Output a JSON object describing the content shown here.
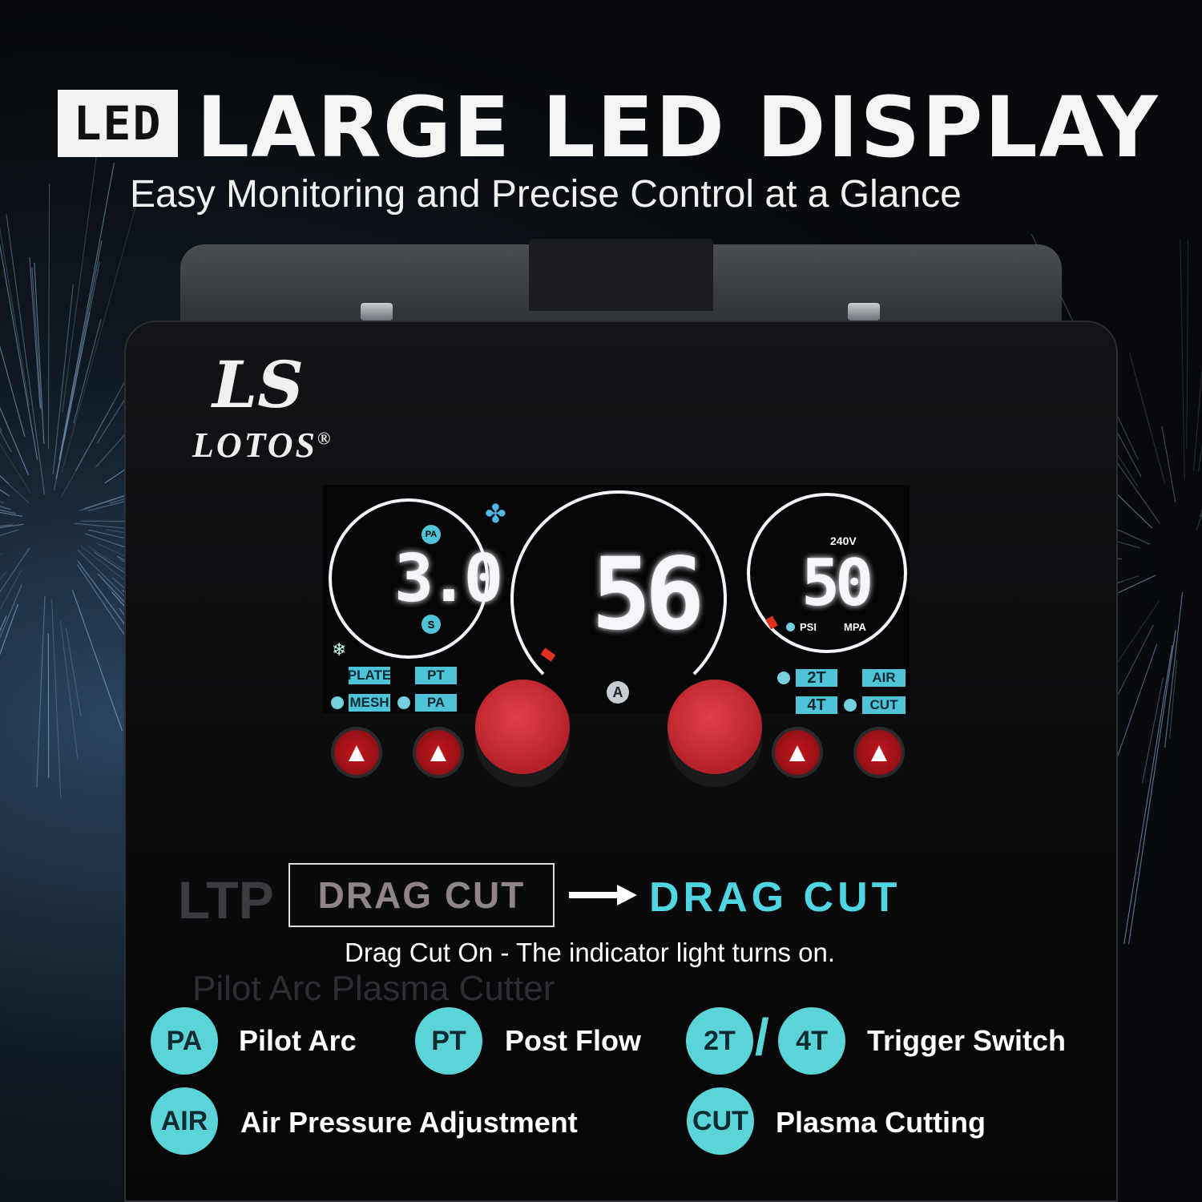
{
  "header": {
    "badge": "LED",
    "title": "LARGE LED DISPLAY",
    "subtitle": "Easy Monitoring and Precise Control at a Glance"
  },
  "brand": {
    "mark": "LS",
    "name": "LOTOS",
    "registered": "®"
  },
  "display": {
    "left": {
      "top_label": "PA",
      "value": "3.0",
      "bottom_label": "S"
    },
    "center": {
      "value": "56",
      "unit": "A"
    },
    "right": {
      "voltage": "240V",
      "value": "50",
      "unit_psi": "PSI",
      "unit_mpa": "MPA"
    },
    "tags_left": [
      "PLATE",
      "PT",
      "MESH",
      "PA"
    ],
    "tags_right": [
      "2T",
      "AIR",
      "4T",
      "CUT"
    ],
    "accent": "#4fc3d8"
  },
  "model": {
    "faint_model": "LTP",
    "faint_subtitle": "Pilot Arc Plasma Cutter"
  },
  "callout": {
    "boxed": "DRAG CUT",
    "highlight": "DRAG CUT",
    "description": "Drag Cut On - The indicator light turns on.",
    "color": "#4fd6e0"
  },
  "legend": [
    {
      "badge": "PA",
      "label": "Pilot Arc"
    },
    {
      "badge": "PT",
      "label": "Post Flow"
    },
    {
      "badge": "2T",
      "badge2": "4T",
      "separator": "/",
      "label": "Trigger Switch"
    },
    {
      "badge": "AIR",
      "label": "Air Pressure Adjustment"
    },
    {
      "badge": "CUT",
      "label": "Plasma Cutting"
    }
  ]
}
